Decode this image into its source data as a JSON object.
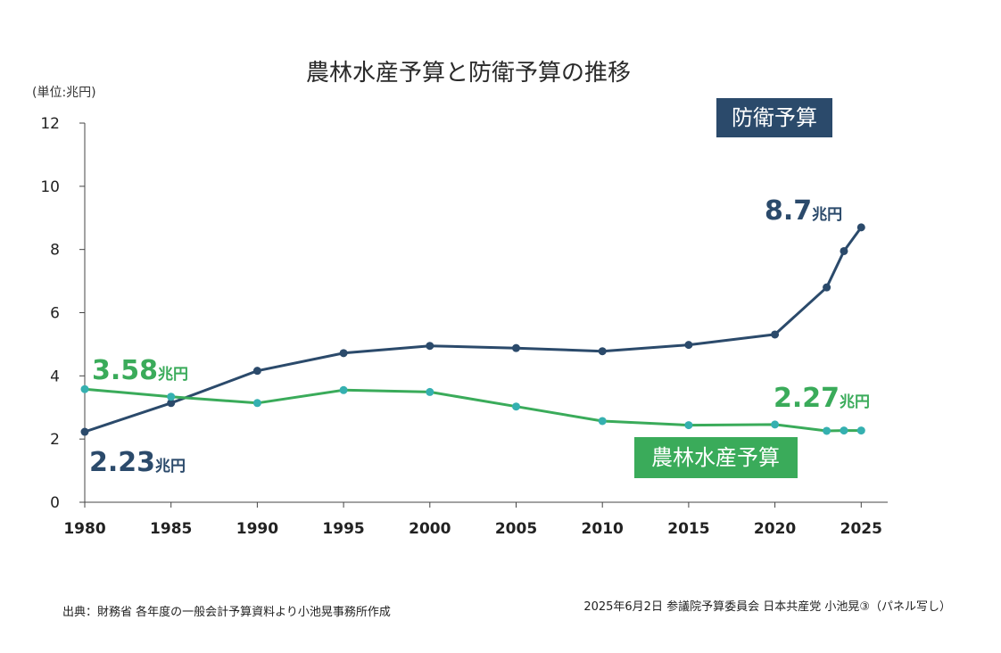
{
  "chart_data": {
    "type": "line",
    "title": "農林水産予算と防衛予算の推移",
    "unit_label": "(単位:兆円)",
    "ylim": [
      0,
      12
    ],
    "yticks": [
      "0",
      "2",
      "4",
      "6",
      "8",
      "10",
      "12"
    ],
    "xlim": [
      1980,
      2026
    ],
    "xticks": [
      "1980",
      "1985",
      "1990",
      "1995",
      "2000",
      "2005",
      "2010",
      "2015",
      "2020",
      "2025"
    ],
    "grid": false,
    "series": [
      {
        "name": "防衛予算",
        "color": "#2b4a6b",
        "x": [
          1980,
          1985,
          1990,
          1995,
          2000,
          2005,
          2010,
          2015,
          2020,
          2023,
          2024,
          2025
        ],
        "values": [
          2.23,
          3.14,
          4.16,
          4.72,
          4.95,
          4.88,
          4.78,
          4.98,
          5.31,
          6.8,
          7.95,
          8.7
        ]
      },
      {
        "name": "農林水産予算",
        "color": "#3aab5a",
        "x": [
          1980,
          1985,
          1990,
          1995,
          2000,
          2005,
          2010,
          2015,
          2020,
          2023,
          2024,
          2025
        ],
        "values": [
          3.58,
          3.34,
          3.14,
          3.55,
          3.49,
          3.03,
          2.57,
          2.44,
          2.46,
          2.26,
          2.27,
          2.27
        ]
      }
    ],
    "annotations": [
      {
        "num": "8.7",
        "unit": "兆円"
      },
      {
        "num": "3.58",
        "unit": "兆円"
      },
      {
        "num": "2.23",
        "unit": "兆円"
      },
      {
        "num": "2.27",
        "unit": "兆円"
      }
    ],
    "source_left": "出典：財務省 各年度の一般会計予算資料より小池晃事務所作成",
    "source_right": "2025年6月2日 参議院予算委員会 日本共産党 小池晃③（パネル写し）"
  }
}
